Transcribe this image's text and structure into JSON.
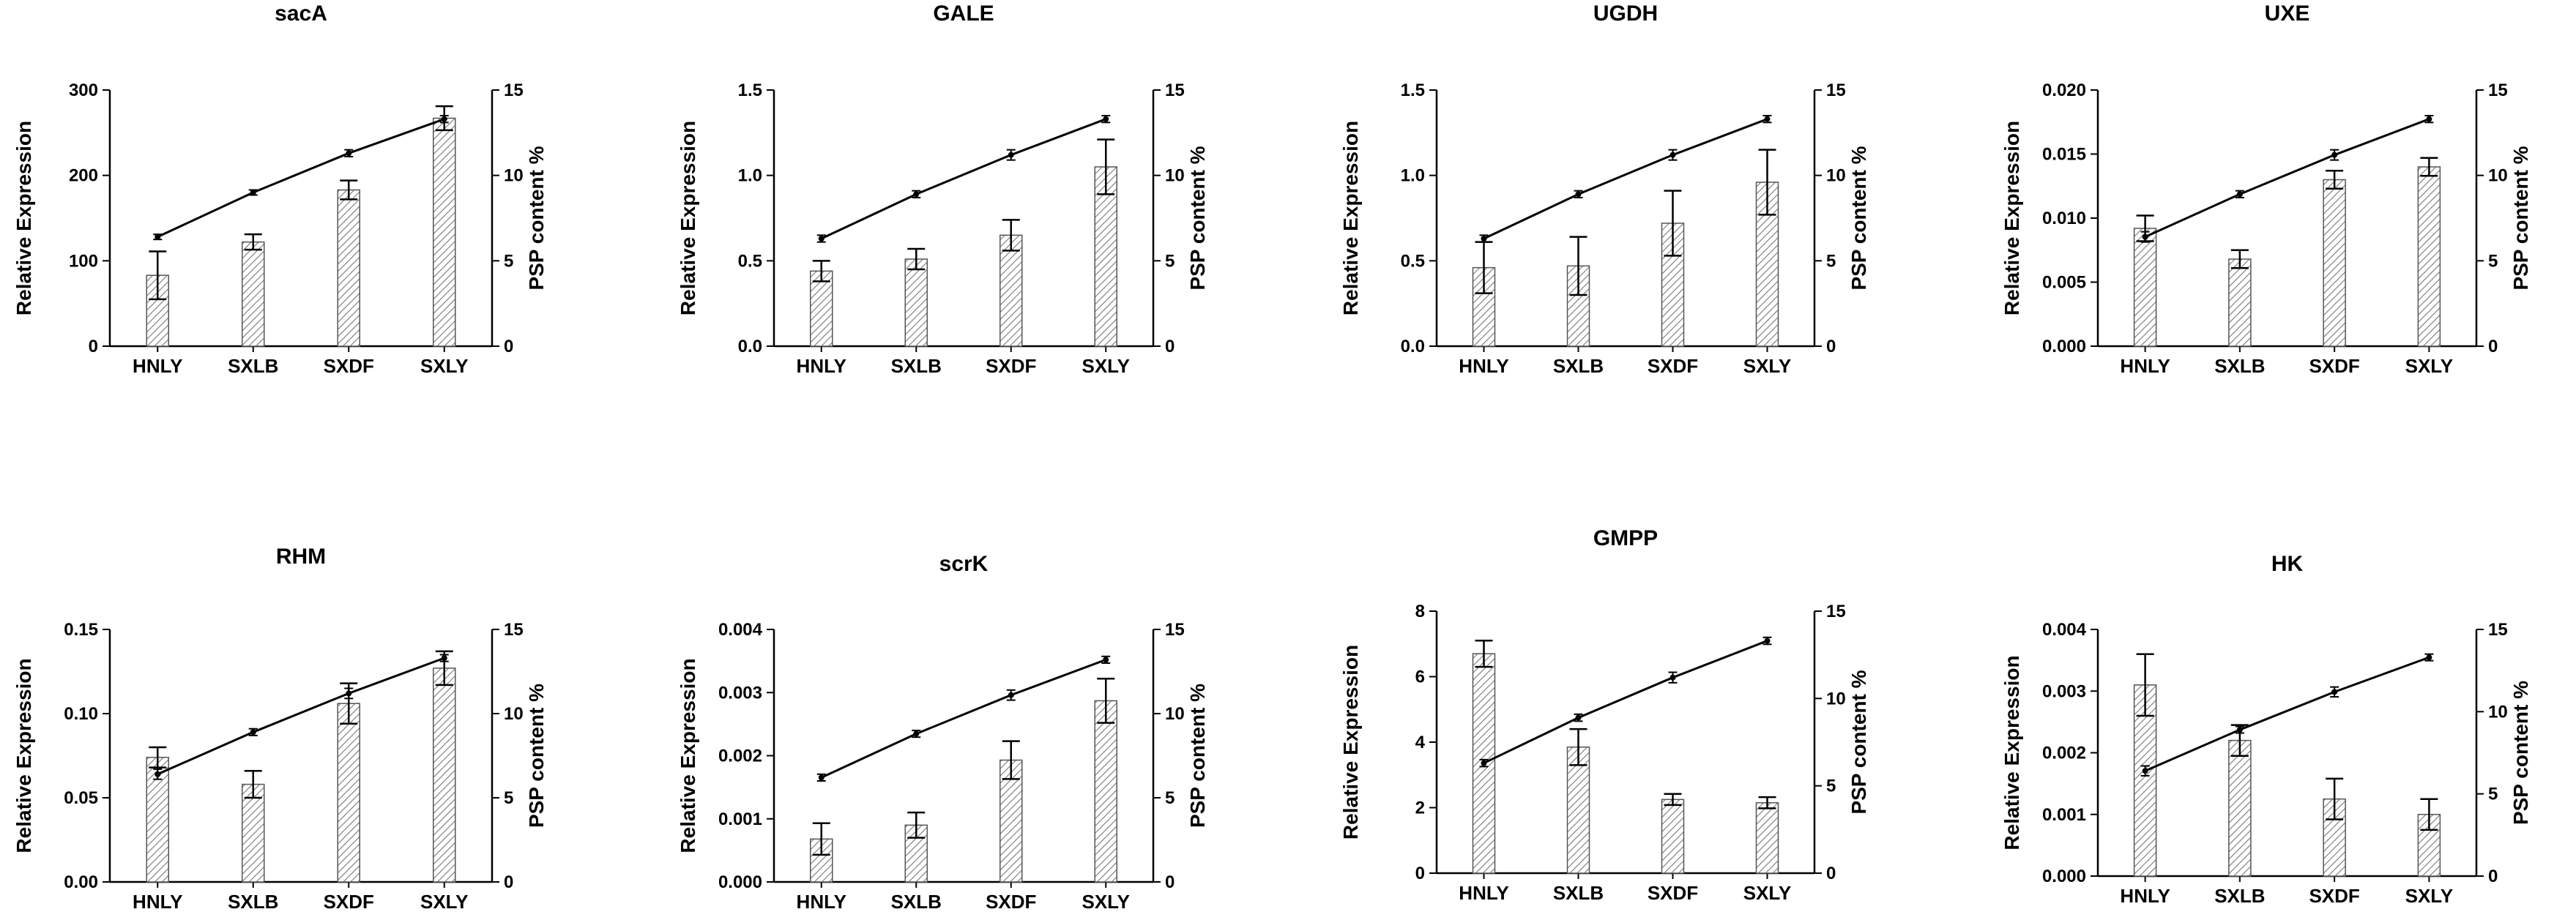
{
  "figure": {
    "categories": [
      "HNLY",
      "SXLB",
      "SXDF",
      "SXLY"
    ],
    "left_axis_label": "Relative Expression",
    "right_axis_label": "PSP content %",
    "bar_fill": "#777777",
    "line_color": "#000000"
  },
  "chart_data": [
    {
      "type": "bar",
      "title": "sacA",
      "categories": [
        "HNLY",
        "SXLB",
        "SXDF",
        "SXLY"
      ],
      "ylabel": "Relative Expression",
      "ylim": [
        0,
        300
      ],
      "yticks": [
        "0",
        "100",
        "200",
        "300"
      ],
      "values": [
        83,
        122,
        183,
        267
      ],
      "errors": [
        28,
        9,
        11,
        14
      ],
      "y2label": "PSP content %",
      "y2lim": [
        0,
        15
      ],
      "y2ticks": [
        "0",
        "5",
        "10",
        "15"
      ],
      "line_values": [
        6.4,
        9.0,
        11.3,
        13.3
      ],
      "line_errors": [
        0.15,
        0.15,
        0.2,
        0.2
      ]
    },
    {
      "type": "bar",
      "title": "GALE",
      "categories": [
        "HNLY",
        "SXLB",
        "SXDF",
        "SXLY"
      ],
      "ylabel": "Relative Expression",
      "ylim": [
        0,
        1.5
      ],
      "yticks": [
        "0.0",
        "0.5",
        "1.0",
        "1.5"
      ],
      "values": [
        0.44,
        0.51,
        0.65,
        1.05
      ],
      "errors": [
        0.06,
        0.06,
        0.09,
        0.16
      ],
      "y2label": "PSP content %",
      "y2lim": [
        0,
        15
      ],
      "y2ticks": [
        "0",
        "5",
        "10",
        "15"
      ],
      "line_values": [
        6.3,
        8.9,
        11.2,
        13.3
      ],
      "line_errors": [
        0.2,
        0.2,
        0.3,
        0.2
      ]
    },
    {
      "type": "bar",
      "title": "UGDH",
      "categories": [
        "HNLY",
        "SXLB",
        "SXDF",
        "SXLY"
      ],
      "ylabel": "Relative Expression",
      "ylim": [
        0,
        1.5
      ],
      "yticks": [
        "0.0",
        "0.5",
        "1.0",
        "1.5"
      ],
      "values": [
        0.46,
        0.47,
        0.72,
        0.96
      ],
      "errors": [
        0.15,
        0.17,
        0.19,
        0.19
      ],
      "y2label": "PSP content %",
      "y2lim": [
        0,
        15
      ],
      "y2ticks": [
        "0",
        "5",
        "10",
        "15"
      ],
      "line_values": [
        6.3,
        8.9,
        11.2,
        13.3
      ],
      "line_errors": [
        0.2,
        0.2,
        0.3,
        0.2
      ]
    },
    {
      "type": "bar",
      "title": "UXE",
      "categories": [
        "HNLY",
        "SXLB",
        "SXDF",
        "SXLY"
      ],
      "ylabel": "Relative Expression",
      "ylim": [
        0,
        0.02
      ],
      "yticks": [
        "0.000",
        "0.005",
        "0.010",
        "0.015",
        "0.020"
      ],
      "values": [
        0.0092,
        0.0068,
        0.013,
        0.014
      ],
      "errors": [
        0.001,
        0.0007,
        0.0007,
        0.0007
      ],
      "y2label": "PSP content %",
      "y2lim": [
        0,
        15
      ],
      "y2ticks": [
        "0",
        "5",
        "10",
        "15"
      ],
      "line_values": [
        6.4,
        8.9,
        11.2,
        13.3
      ],
      "line_errors": [
        0.3,
        0.2,
        0.3,
        0.2
      ]
    },
    {
      "type": "bar",
      "title": "RHM",
      "categories": [
        "HNLY",
        "SXLB",
        "SXDF",
        "SXLY"
      ],
      "ylabel": "Relative Expression",
      "ylim": [
        0,
        0.15
      ],
      "yticks": [
        "0.00",
        "0.05",
        "0.10",
        "0.15"
      ],
      "values": [
        0.074,
        0.058,
        0.106,
        0.127
      ],
      "errors": [
        0.006,
        0.008,
        0.012,
        0.01
      ],
      "y2label": "PSP content %",
      "y2lim": [
        0,
        15
      ],
      "y2ticks": [
        "0",
        "5",
        "10",
        "15"
      ],
      "line_values": [
        6.4,
        8.9,
        11.2,
        13.3
      ],
      "line_errors": [
        0.3,
        0.2,
        0.3,
        0.2
      ]
    },
    {
      "type": "bar",
      "title": "scrK",
      "categories": [
        "HNLY",
        "SXLB",
        "SXDF",
        "SXLY"
      ],
      "ylabel": "Relative Expression",
      "ylim": [
        0,
        0.004
      ],
      "yticks": [
        "0.000",
        "0.001",
        "0.002",
        "0.003",
        "0.004"
      ],
      "values": [
        0.00068,
        0.0009,
        0.00193,
        0.00287
      ],
      "errors": [
        0.00025,
        0.0002,
        0.0003,
        0.00035
      ],
      "y2label": "PSP content %",
      "y2lim": [
        0,
        15
      ],
      "y2ticks": [
        "0",
        "5",
        "10",
        "15"
      ],
      "line_values": [
        6.2,
        8.8,
        11.1,
        13.2
      ],
      "line_errors": [
        0.2,
        0.2,
        0.3,
        0.2
      ]
    },
    {
      "type": "bar",
      "title": "GMPP",
      "categories": [
        "HNLY",
        "SXLB",
        "SXDF",
        "SXLY"
      ],
      "ylabel": "Relative Expression",
      "ylim": [
        0,
        8
      ],
      "yticks": [
        "0",
        "2",
        "4",
        "6",
        "8"
      ],
      "values": [
        6.7,
        3.85,
        2.25,
        2.15
      ],
      "errors": [
        0.4,
        0.55,
        0.17,
        0.17
      ],
      "y2label": "PSP content %",
      "y2lim": [
        0,
        15
      ],
      "y2ticks": [
        "0",
        "5",
        "10",
        "15"
      ],
      "line_values": [
        6.3,
        8.9,
        11.2,
        13.3
      ],
      "line_errors": [
        0.2,
        0.2,
        0.3,
        0.2
      ]
    },
    {
      "type": "bar",
      "title": "HK",
      "categories": [
        "HNLY",
        "SXLB",
        "SXDF",
        "SXLY"
      ],
      "ylabel": "Relative Expression",
      "ylim": [
        0,
        0.004
      ],
      "yticks": [
        "0.000",
        "0.001",
        "0.002",
        "0.003",
        "0.004"
      ],
      "values": [
        0.0031,
        0.0022,
        0.00125,
        0.001
      ],
      "errors": [
        0.0005,
        0.00025,
        0.00033,
        0.00025
      ],
      "y2label": "PSP content %",
      "y2lim": [
        0,
        15
      ],
      "y2ticks": [
        "0",
        "5",
        "10",
        "15"
      ],
      "line_values": [
        6.4,
        8.9,
        11.2,
        13.3
      ],
      "line_errors": [
        0.3,
        0.2,
        0.3,
        0.2
      ]
    }
  ]
}
